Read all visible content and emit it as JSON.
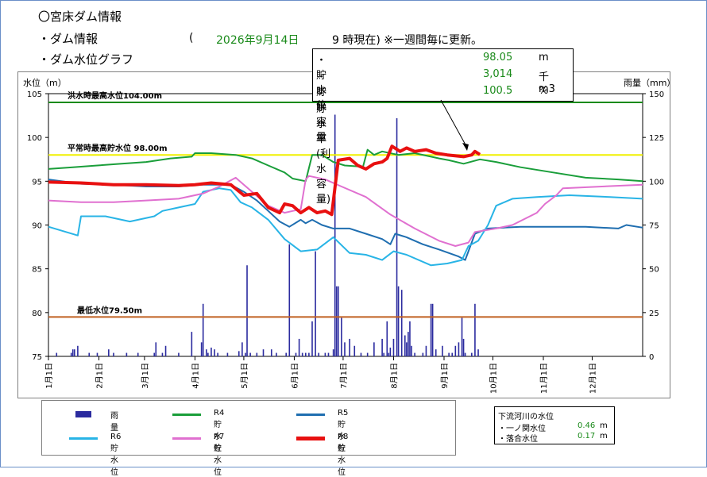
{
  "header": {
    "title": "〇宮床ダム情報",
    "sub1": "・ダム情報",
    "sub2": "・ダム水位グラフ",
    "paren": "(",
    "date": "2026年9月14日",
    "asof": "9 時現在) ※一週間毎に更新。"
  },
  "info_box": {
    "rows": [
      {
        "label": "・貯水位",
        "value": "98.05",
        "unit": "m"
      },
      {
        "label": "・貯水容量",
        "value": "3,014",
        "unit": "千m3"
      },
      {
        "label": "・貯水率(利水容量)",
        "value": "100.5",
        "unit": "%"
      }
    ]
  },
  "legend": {
    "items": [
      {
        "label": "雨　量",
        "color": "#2b2b9f"
      },
      {
        "label": "R4貯水位",
        "color": "#1a9e3a"
      },
      {
        "label": "R5貯水位",
        "color": "#1f6eb0"
      },
      {
        "label": "R6貯水位",
        "color": "#28b4e6"
      },
      {
        "label": "R7貯水位",
        "color": "#e070d0"
      },
      {
        "label": "R8貯水位",
        "color": "#e81010"
      }
    ]
  },
  "river": {
    "title": "下流河川の水位",
    "rows": [
      {
        "label": "・一ノ関水位",
        "value": "0.46",
        "unit": "m"
      },
      {
        "label": "・落合水位",
        "value": "0.17",
        "unit": "m"
      }
    ]
  },
  "chart_data": {
    "type": "line",
    "ylabel": "水位（m）",
    "y2label": "雨量（mm）",
    "ylim": [
      75,
      105
    ],
    "y2lim": [
      0,
      150
    ],
    "yticks": [
      75,
      80,
      85,
      90,
      95,
      100,
      105
    ],
    "y2ticks": [
      0,
      25,
      50,
      75,
      100,
      125,
      150
    ],
    "x_months": [
      "1月1日",
      "2月1日",
      "3月1日",
      "4月1日",
      "5月1日",
      "6月1日",
      "7月1日",
      "8月1日",
      "9月1日",
      "10月1日",
      "11月1日",
      "12月1日"
    ],
    "xlim_days": [
      0,
      365
    ],
    "reference_lines": [
      {
        "label": "洪水時最高水位104.00m",
        "value": 104.0,
        "color": "#1a8a1a"
      },
      {
        "label": "平常時最高貯水位 98.00m",
        "value": 98.0,
        "color": "#f0f000"
      },
      {
        "label": "最低水位79.50m",
        "value": 79.5,
        "color": "#c06020"
      }
    ],
    "series": [
      {
        "name": "R4貯水位",
        "color": "#1a9e3a",
        "width": 2,
        "points": [
          [
            0,
            96.4
          ],
          [
            15,
            96.6
          ],
          [
            30,
            96.8
          ],
          [
            45,
            97.0
          ],
          [
            60,
            97.2
          ],
          [
            75,
            97.6
          ],
          [
            88,
            97.8
          ],
          [
            90,
            98.2
          ],
          [
            100,
            98.2
          ],
          [
            115,
            98.0
          ],
          [
            125,
            97.6
          ],
          [
            135,
            96.8
          ],
          [
            145,
            96.0
          ],
          [
            150,
            95.3
          ],
          [
            158,
            95.0
          ],
          [
            162,
            98.0
          ],
          [
            168,
            98.0
          ],
          [
            175,
            97.2
          ],
          [
            182,
            96.8
          ],
          [
            190,
            96.7
          ],
          [
            193,
            96.5
          ],
          [
            196,
            98.6
          ],
          [
            200,
            98.0
          ],
          [
            205,
            98.4
          ],
          [
            215,
            98.0
          ],
          [
            225,
            98.2
          ],
          [
            235,
            97.8
          ],
          [
            240,
            97.6
          ],
          [
            246,
            97.4
          ],
          [
            255,
            97.0
          ],
          [
            265,
            97.5
          ],
          [
            275,
            97.2
          ],
          [
            290,
            96.6
          ],
          [
            310,
            96.0
          ],
          [
            330,
            95.4
          ],
          [
            350,
            95.2
          ],
          [
            365,
            95.0
          ]
        ]
      },
      {
        "name": "R5貯水位",
        "color": "#1f6eb0",
        "width": 2,
        "points": [
          [
            0,
            95.2
          ],
          [
            20,
            94.7
          ],
          [
            40,
            94.6
          ],
          [
            60,
            94.4
          ],
          [
            80,
            94.4
          ],
          [
            95,
            94.6
          ],
          [
            112,
            94.6
          ],
          [
            120,
            93.8
          ],
          [
            128,
            92.8
          ],
          [
            135,
            91.6
          ],
          [
            142,
            90.4
          ],
          [
            148,
            89.8
          ],
          [
            155,
            90.6
          ],
          [
            158,
            90.2
          ],
          [
            162,
            90.6
          ],
          [
            168,
            90.0
          ],
          [
            175,
            89.6
          ],
          [
            180,
            89.6
          ],
          [
            185,
            89.6
          ],
          [
            195,
            89.0
          ],
          [
            205,
            88.4
          ],
          [
            210,
            87.8
          ],
          [
            213,
            89.0
          ],
          [
            220,
            88.6
          ],
          [
            230,
            87.8
          ],
          [
            240,
            87.2
          ],
          [
            252,
            86.4
          ],
          [
            256,
            86.0
          ],
          [
            262,
            89.0
          ],
          [
            270,
            89.6
          ],
          [
            290,
            89.8
          ],
          [
            310,
            89.8
          ],
          [
            330,
            89.8
          ],
          [
            350,
            89.6
          ],
          [
            355,
            90.0
          ],
          [
            365,
            89.7
          ]
        ]
      },
      {
        "name": "R6貯水位",
        "color": "#28b4e6",
        "width": 2,
        "points": [
          [
            0,
            89.8
          ],
          [
            18,
            88.8
          ],
          [
            20,
            91.0
          ],
          [
            35,
            91.0
          ],
          [
            50,
            90.4
          ],
          [
            65,
            91.0
          ],
          [
            70,
            91.6
          ],
          [
            80,
            92.0
          ],
          [
            90,
            92.4
          ],
          [
            95,
            93.8
          ],
          [
            105,
            94.2
          ],
          [
            112,
            94.0
          ],
          [
            118,
            92.6
          ],
          [
            125,
            92.0
          ],
          [
            135,
            90.6
          ],
          [
            145,
            88.4
          ],
          [
            155,
            87.0
          ],
          [
            165,
            87.2
          ],
          [
            175,
            88.6
          ],
          [
            185,
            86.8
          ],
          [
            195,
            86.6
          ],
          [
            205,
            86.0
          ],
          [
            212,
            87.0
          ],
          [
            220,
            86.6
          ],
          [
            235,
            85.4
          ],
          [
            245,
            85.6
          ],
          [
            254,
            86.0
          ],
          [
            258,
            87.6
          ],
          [
            264,
            88.2
          ],
          [
            270,
            90.0
          ],
          [
            275,
            92.2
          ],
          [
            285,
            93.0
          ],
          [
            300,
            93.2
          ],
          [
            320,
            93.4
          ],
          [
            345,
            93.2
          ],
          [
            365,
            93.0
          ]
        ]
      },
      {
        "name": "R7貯水位",
        "color": "#e070d0",
        "width": 2,
        "points": [
          [
            0,
            92.8
          ],
          [
            20,
            92.6
          ],
          [
            40,
            92.6
          ],
          [
            60,
            92.8
          ],
          [
            80,
            93.0
          ],
          [
            95,
            93.6
          ],
          [
            105,
            94.4
          ],
          [
            115,
            95.4
          ],
          [
            125,
            93.8
          ],
          [
            135,
            92.2
          ],
          [
            145,
            91.4
          ],
          [
            150,
            91.6
          ],
          [
            155,
            91.8
          ],
          [
            158,
            95.2
          ],
          [
            160,
            95.6
          ],
          [
            170,
            95.2
          ],
          [
            180,
            94.4
          ],
          [
            195,
            93.2
          ],
          [
            210,
            91.2
          ],
          [
            225,
            89.6
          ],
          [
            240,
            88.2
          ],
          [
            250,
            87.6
          ],
          [
            258,
            88.0
          ],
          [
            262,
            89.2
          ],
          [
            275,
            89.6
          ],
          [
            285,
            90.0
          ],
          [
            300,
            91.4
          ],
          [
            305,
            92.4
          ],
          [
            312,
            93.4
          ],
          [
            316,
            94.2
          ],
          [
            340,
            94.4
          ],
          [
            365,
            94.6
          ]
        ]
      },
      {
        "name": "R8貯水位",
        "color": "#e81010",
        "width": 4,
        "points": [
          [
            0,
            94.9
          ],
          [
            20,
            94.8
          ],
          [
            40,
            94.6
          ],
          [
            60,
            94.6
          ],
          [
            80,
            94.5
          ],
          [
            90,
            94.6
          ],
          [
            100,
            94.8
          ],
          [
            112,
            94.6
          ],
          [
            120,
            93.4
          ],
          [
            128,
            93.6
          ],
          [
            135,
            92.0
          ],
          [
            142,
            91.4
          ],
          [
            145,
            92.4
          ],
          [
            150,
            92.2
          ],
          [
            155,
            91.4
          ],
          [
            160,
            92.0
          ],
          [
            165,
            91.4
          ],
          [
            170,
            91.6
          ],
          [
            174,
            91.2
          ],
          [
            178,
            97.4
          ],
          [
            185,
            97.6
          ],
          [
            190,
            96.8
          ],
          [
            195,
            96.4
          ],
          [
            200,
            97.0
          ],
          [
            205,
            97.2
          ],
          [
            208,
            97.6
          ],
          [
            211,
            99.0
          ],
          [
            216,
            98.4
          ],
          [
            220,
            98.8
          ],
          [
            225,
            98.4
          ],
          [
            232,
            98.6
          ],
          [
            238,
            98.2
          ],
          [
            245,
            98.0
          ],
          [
            255,
            97.8
          ],
          [
            260,
            98.0
          ],
          [
            262,
            98.4
          ],
          [
            265,
            98.05
          ]
        ]
      }
    ],
    "rain_bars": [
      [
        5,
        2
      ],
      [
        14,
        2
      ],
      [
        15,
        4
      ],
      [
        16,
        4
      ],
      [
        18,
        6
      ],
      [
        25,
        2
      ],
      [
        30,
        2
      ],
      [
        37,
        4
      ],
      [
        40,
        2
      ],
      [
        48,
        2
      ],
      [
        55,
        2
      ],
      [
        65,
        2
      ],
      [
        66,
        8
      ],
      [
        70,
        2
      ],
      [
        72,
        6
      ],
      [
        80,
        2
      ],
      [
        88,
        14
      ],
      [
        94,
        8
      ],
      [
        95,
        30
      ],
      [
        97,
        4
      ],
      [
        98,
        2
      ],
      [
        100,
        5
      ],
      [
        102,
        4
      ],
      [
        104,
        2
      ],
      [
        110,
        2
      ],
      [
        117,
        3
      ],
      [
        119,
        8
      ],
      [
        121,
        2
      ],
      [
        122,
        52
      ],
      [
        124,
        2
      ],
      [
        128,
        2
      ],
      [
        132,
        4
      ],
      [
        137,
        4
      ],
      [
        140,
        2
      ],
      [
        146,
        2
      ],
      [
        148,
        64
      ],
      [
        152,
        2
      ],
      [
        154,
        10
      ],
      [
        156,
        2
      ],
      [
        158,
        2
      ],
      [
        160,
        2
      ],
      [
        162,
        20
      ],
      [
        164,
        60
      ],
      [
        166,
        2
      ],
      [
        170,
        2
      ],
      [
        172,
        2
      ],
      [
        175,
        4
      ],
      [
        176,
        138
      ],
      [
        177,
        40
      ],
      [
        178,
        40
      ],
      [
        180,
        22
      ],
      [
        182,
        8
      ],
      [
        185,
        10
      ],
      [
        188,
        6
      ],
      [
        192,
        2
      ],
      [
        196,
        2
      ],
      [
        200,
        8
      ],
      [
        205,
        10
      ],
      [
        206,
        2
      ],
      [
        208,
        20
      ],
      [
        209,
        2
      ],
      [
        210,
        5
      ],
      [
        212,
        10
      ],
      [
        214,
        136
      ],
      [
        215,
        40
      ],
      [
        217,
        38
      ],
      [
        219,
        12
      ],
      [
        220,
        8
      ],
      [
        221,
        14
      ],
      [
        222,
        20
      ],
      [
        223,
        6
      ],
      [
        225,
        2
      ],
      [
        230,
        2
      ],
      [
        232,
        6
      ],
      [
        235,
        30
      ],
      [
        236,
        30
      ],
      [
        238,
        4
      ],
      [
        242,
        6
      ],
      [
        246,
        2
      ],
      [
        248,
        2
      ],
      [
        250,
        6
      ],
      [
        252,
        8
      ],
      [
        254,
        22
      ],
      [
        255,
        10
      ],
      [
        256,
        2
      ],
      [
        260,
        2
      ],
      [
        262,
        30
      ],
      [
        264,
        4
      ]
    ]
  }
}
